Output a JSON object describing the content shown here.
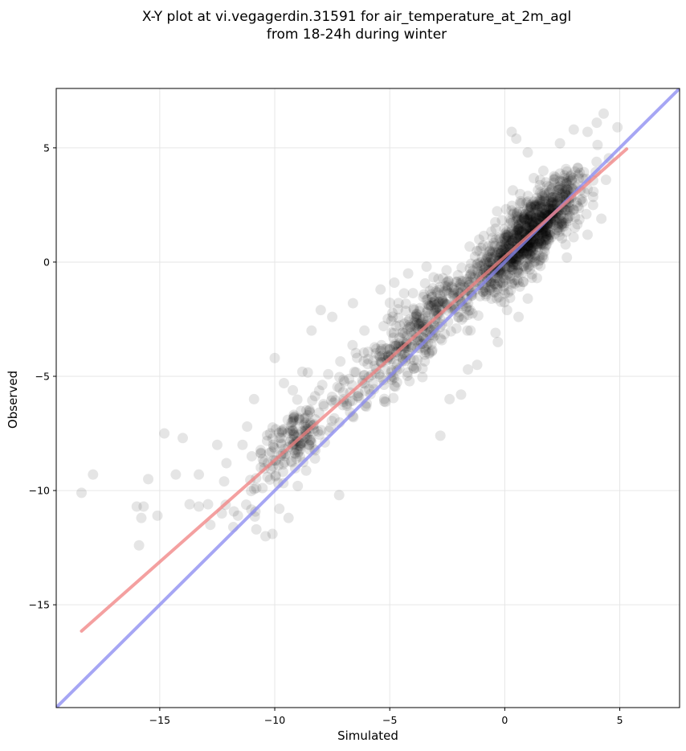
{
  "chart_data": {
    "type": "scatter",
    "title_line1": "X-Y plot at vi.vegagerdin.31591 for air_temperature_at_2m_agl",
    "title_line2": "from 18-24h during winter",
    "xlabel": "Simulated",
    "ylabel": "Observed",
    "xlim": [
      -19.5,
      7.6
    ],
    "ylim": [
      -19.5,
      7.6
    ],
    "xticks": [
      -15,
      -10,
      -5,
      0,
      5
    ],
    "yticks": [
      -15,
      -10,
      -5,
      0,
      5
    ],
    "xtick_labels": [
      "−15",
      "−10",
      "−5",
      "0",
      "5"
    ],
    "ytick_labels": [
      "−15",
      "−10",
      "−5",
      "0",
      "5"
    ],
    "grid": true,
    "point_color": "#000000",
    "point_alpha": 0.1,
    "regression_line": {
      "color": "#f08080",
      "x": [
        -18.4,
        5.3
      ],
      "y": [
        -16.15,
        4.95
      ]
    },
    "identity_line": {
      "color": "#8888f0",
      "x": [
        -19.5,
        7.6
      ],
      "y": [
        -19.5,
        7.6
      ]
    },
    "outlier_points": [
      [
        -18.4,
        -10.1
      ],
      [
        -17.9,
        -9.3
      ],
      [
        -16.0,
        -10.7
      ],
      [
        -15.7,
        -10.7
      ],
      [
        -15.8,
        -11.2
      ],
      [
        -15.9,
        -12.4
      ],
      [
        -15.5,
        -9.5
      ],
      [
        -15.1,
        -11.1
      ],
      [
        -14.8,
        -7.5
      ],
      [
        -14.3,
        -9.3
      ],
      [
        -14.0,
        -7.7
      ],
      [
        -13.7,
        -10.6
      ],
      [
        -13.3,
        -9.3
      ],
      [
        -13.3,
        -10.7
      ],
      [
        -12.9,
        -10.6
      ],
      [
        -12.8,
        -11.5
      ],
      [
        -12.5,
        -8.0
      ],
      [
        -12.3,
        -11.0
      ],
      [
        -12.2,
        -9.6
      ],
      [
        -12.1,
        -8.8
      ],
      [
        -11.8,
        -11.6
      ],
      [
        -11.6,
        -11.1
      ],
      [
        -11.4,
        -8.0
      ],
      [
        -11.2,
        -7.2
      ],
      [
        -11.0,
        -8.5
      ],
      [
        -10.9,
        -6.0
      ],
      [
        -10.8,
        -11.7
      ],
      [
        -10.4,
        -12.0
      ],
      [
        -10.2,
        -7.5
      ],
      [
        -10.1,
        -11.9
      ],
      [
        -10.0,
        -4.2
      ],
      [
        -9.8,
        -10.8
      ],
      [
        -9.6,
        -5.3
      ],
      [
        -9.4,
        -11.2
      ],
      [
        -9.0,
        -9.8
      ],
      [
        -8.8,
        -4.8
      ],
      [
        -8.4,
        -3.0
      ],
      [
        -8.0,
        -2.1
      ],
      [
        -7.5,
        -2.4
      ],
      [
        -7.2,
        -10.2
      ],
      [
        -6.6,
        -1.8
      ],
      [
        -6.1,
        -3.0
      ],
      [
        -5.4,
        -1.2
      ],
      [
        -4.8,
        -0.9
      ],
      [
        -4.2,
        -0.5
      ],
      [
        -3.4,
        -0.2
      ],
      [
        -2.8,
        -7.6
      ],
      [
        -2.4,
        -6.0
      ],
      [
        -1.9,
        -5.8
      ],
      [
        -1.6,
        -4.7
      ],
      [
        -1.2,
        -4.5
      ],
      [
        -0.3,
        -3.5
      ],
      [
        0.3,
        5.7
      ],
      [
        0.5,
        5.4
      ],
      [
        1.0,
        4.8
      ],
      [
        2.4,
        5.2
      ],
      [
        3.0,
        5.8
      ],
      [
        3.6,
        5.7
      ],
      [
        4.0,
        6.1
      ],
      [
        4.3,
        6.5
      ],
      [
        4.9,
        5.9
      ],
      [
        4.4,
        3.6
      ],
      [
        4.2,
        1.9
      ],
      [
        3.6,
        1.2
      ],
      [
        2.7,
        0.2
      ],
      [
        1.0,
        -1.6
      ],
      [
        0.6,
        -2.4
      ],
      [
        0.1,
        -2.1
      ],
      [
        -0.4,
        -3.1
      ],
      [
        1.4,
        -0.7
      ]
    ]
  }
}
